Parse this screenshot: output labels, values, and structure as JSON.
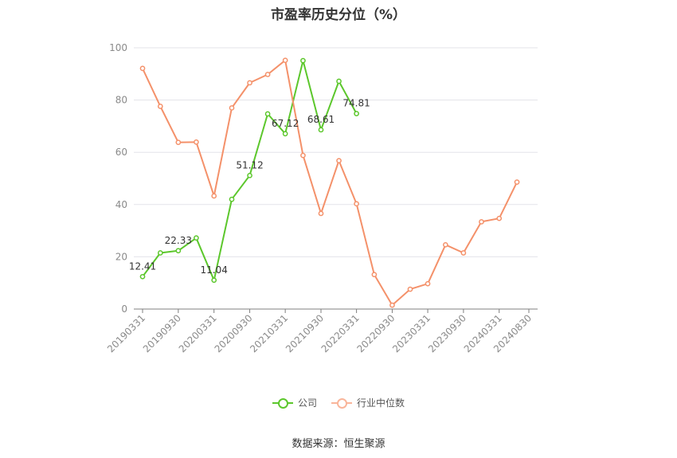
{
  "chart_data": {
    "type": "line",
    "title": "市盈率历史分位（%）",
    "xlabel": "",
    "ylabel": "",
    "ylim": [
      0,
      100
    ],
    "yticks": [
      0,
      20,
      40,
      60,
      80,
      100
    ],
    "x_tick_labels": [
      "20190331",
      "20190930",
      "20200331",
      "20200930",
      "20210331",
      "20210930",
      "20220331",
      "20220930",
      "20230331",
      "20230930",
      "20240331",
      "20240830"
    ],
    "x": [
      "20190331",
      "20190630",
      "20190930",
      "20191231",
      "20200331",
      "20200630",
      "20200930",
      "20201231",
      "20210331",
      "20210630",
      "20210930",
      "20211231",
      "20220331",
      "20220630",
      "20220930",
      "20221231",
      "20230331",
      "20230630",
      "20230930",
      "20231231",
      "20240331",
      "20240630"
    ],
    "series": [
      {
        "name": "公司",
        "color": "#5cc72c",
        "values": [
          12.41,
          21.5,
          22.33,
          27.2,
          11.04,
          42.0,
          51.12,
          74.7,
          67.12,
          95.1,
          68.61,
          87.2,
          74.81,
          null,
          null,
          null,
          null,
          null,
          null,
          null,
          null,
          null
        ],
        "labels": {
          "0": "12.41",
          "2": "22.33",
          "4": "11.04",
          "6": "51.12",
          "8": "67.12",
          "10": "68.61",
          "12": "74.81"
        }
      },
      {
        "name": "行业中位数",
        "color": "#f4916a",
        "values": [
          92.1,
          77.6,
          63.8,
          63.9,
          43.3,
          77.0,
          86.6,
          89.8,
          95.2,
          58.8,
          36.6,
          56.8,
          40.3,
          13.2,
          1.5,
          7.6,
          9.7,
          24.6,
          21.5,
          33.4,
          34.7,
          48.6
        ]
      }
    ],
    "grid": true,
    "legend_position": "bottom-center"
  },
  "legend": {
    "company": "公司",
    "industry": "行业中位数"
  },
  "source_text": "数据来源：恒生聚源"
}
